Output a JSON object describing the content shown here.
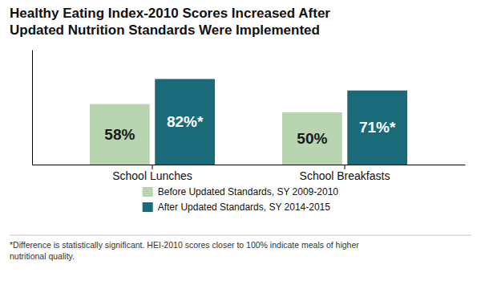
{
  "chart_data": {
    "type": "bar",
    "title": "Healthy Eating Index-2010 Scores Increased After\nUpdated Nutrition Standards Were Implemented",
    "categories": [
      "School Lunches",
      "School Breakfasts"
    ],
    "series": [
      {
        "name": "Before Updated Standards, SY 2009-2010",
        "color": "#b8d4b0",
        "values": [
          58,
          50
        ],
        "value_labels": [
          "58%",
          "50%"
        ]
      },
      {
        "name": "After Updated Standards, SY 2014-2015",
        "color": "#1a6b7a",
        "values": [
          82,
          71
        ],
        "value_labels": [
          "82%*",
          "71%*"
        ]
      }
    ],
    "ylim": [
      0,
      110
    ],
    "yticks": [],
    "tick_labels": "x",
    "data_labels": true,
    "legend": "bottom",
    "annotations": [
      "*Difference is statistically significant. HEI-2010 scores closer to 100% indicate meals of higher\nnutritional quality."
    ]
  }
}
